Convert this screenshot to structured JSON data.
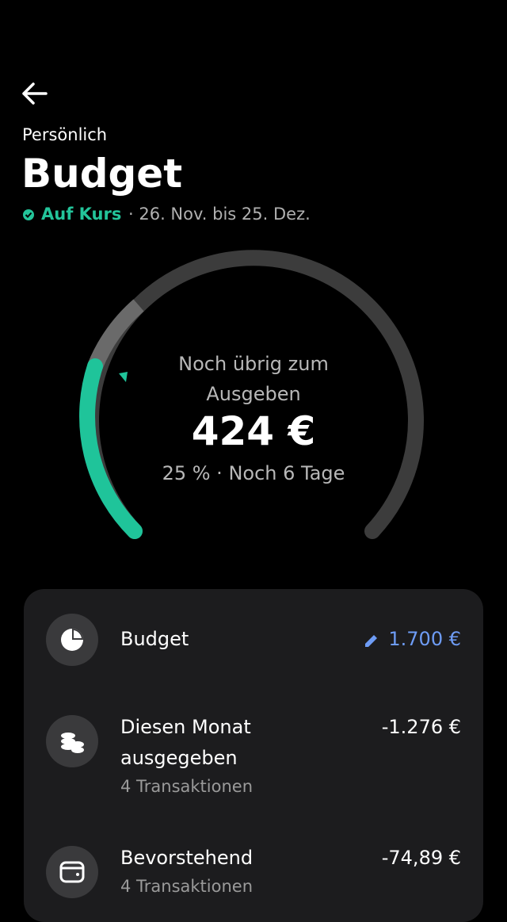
{
  "header": {
    "subtitle": "Persönlich",
    "title": "Budget",
    "status": "Auf Kurs",
    "period": "· 26. Nov. bis 25. Dez."
  },
  "gauge": {
    "caption": "Noch übrig zum Ausgeben",
    "amount": "424 €",
    "detail": "25 % · Noch 6 Tage"
  },
  "rows": [
    {
      "label": "Budget",
      "value": "1.700 €"
    },
    {
      "label": "Diesen Monat ausgegeben",
      "value": "-1.276 €",
      "sub": "4 Transaktionen"
    },
    {
      "label": "Bevorstehend",
      "value": "-74,89 €",
      "sub": "4 Transaktionen"
    }
  ]
}
